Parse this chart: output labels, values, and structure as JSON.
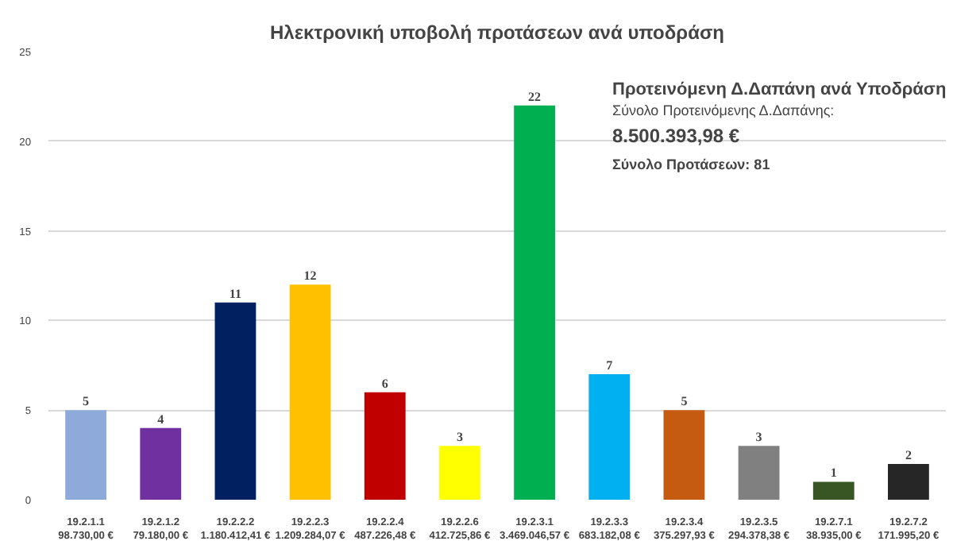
{
  "chart_data": {
    "type": "bar",
    "title": "Ηλεκτρονική υποβολή προτάσεων ανά υποδράση",
    "categories": [
      "19.2.1.1\n98.730,00 €",
      "19.2.1.2\n79.180,00 €",
      "19.2.2.2\n1.180.412,41 €",
      "19.2.2.3\n1.209.284,07 €",
      "19.2.2.4\n487.226,48 €",
      "19.2.2.6\n412.725,86 €",
      "19.2.3.1\n3.469.046,57 €",
      "19.2.3.3\n683.182,08 €",
      "19.2.3.4\n375.297,93 €",
      "19.2.3.5\n294.378,38 €",
      "19.2.7.1\n38.935,00 €",
      "19.2.7.2\n171.995,20 €"
    ],
    "values": [
      5,
      4,
      11,
      12,
      6,
      3,
      22,
      7,
      5,
      3,
      1,
      2
    ],
    "colors": [
      "#8eaadb",
      "#7030a0",
      "#002060",
      "#ffc000",
      "#c00000",
      "#ffff00",
      "#00b050",
      "#00b0f0",
      "#c55a11",
      "#808080",
      "#375623",
      "#262626"
    ],
    "ylim": [
      0,
      25
    ],
    "yticks": [
      0,
      5,
      10,
      15,
      20,
      25
    ],
    "grid": "y",
    "data_labels": true,
    "annotations": [
      "Προτεινόμενη Δ.Δαπάνη ανά Υποδράση",
      "Σύνολο Προτεινόμενης Δ.Δαπάνης:",
      "8.500.393,98 €",
      "Σύνολο Προτάσεων: 81"
    ]
  }
}
